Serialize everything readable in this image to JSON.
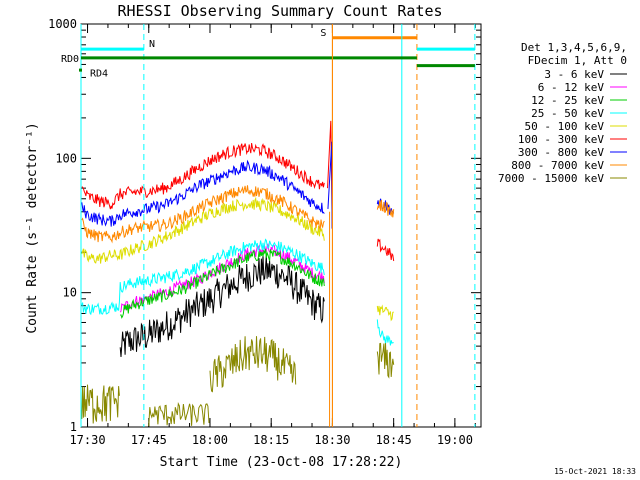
{
  "chart_data": {
    "type": "line",
    "title": "RHESSI Observing Summary Count Rates",
    "xlabel": "Start Time (23-Oct-08 17:28:22)",
    "ylabel": "Count Rate (s⁻¹ detector⁻¹)",
    "yscale": "log",
    "ylim": [
      1,
      1000
    ],
    "xlim_minutes": [
      0,
      98
    ],
    "x_unit": "minutes after 17:28:22",
    "x_ticks": [
      {
        "label": "17:30",
        "minute": 1.6
      },
      {
        "label": "17:45",
        "minute": 16.6
      },
      {
        "label": "18:00",
        "minute": 31.6
      },
      {
        "label": "18:15",
        "minute": 46.6
      },
      {
        "label": "18:30",
        "minute": 61.6
      },
      {
        "label": "18:45",
        "minute": 76.6
      },
      {
        "label": "19:00",
        "minute": 91.6
      }
    ],
    "y_ticks": [
      {
        "label": "1",
        "value": 1
      },
      {
        "label": "10",
        "value": 10
      },
      {
        "label": "100",
        "value": 100
      },
      {
        "label": "1000",
        "value": 1000
      }
    ],
    "legend_header": [
      "Det 1,3,4,5,6,9,",
      "FDecim 1, Att 0"
    ],
    "series": [
      {
        "name": "3 - 6 keV",
        "color": "#000000",
        "x": [
          9.6,
          10.6,
          11.6,
          12.6,
          13.6,
          14.6,
          16.6,
          18.6,
          20.6,
          22.6,
          24.6,
          26.6,
          28.6,
          30.6,
          32.6,
          34.6,
          36.6,
          38.6,
          40.6,
          42.6,
          44.6,
          46.6,
          48.6,
          50.6,
          52.6,
          54.6,
          56.6,
          57.6,
          58.6,
          59.6
        ],
        "y": [
          3.6,
          4.1,
          4.3,
          4.4,
          4.5,
          4.6,
          4.8,
          5.2,
          5.6,
          6.0,
          6.6,
          7.2,
          7.8,
          8.5,
          9.3,
          10.3,
          11.3,
          12.3,
          13.2,
          14.0,
          14.6,
          14.5,
          13.8,
          12.6,
          11.0,
          9.6,
          8.5,
          7.9,
          7.6,
          7.3
        ]
      },
      {
        "name": "6 - 12 keV",
        "color": "#ff00ff",
        "x": [
          9.6,
          12.6,
          16.6,
          20.6,
          24.6,
          28.6,
          32.6,
          36.6,
          40.6,
          44.6,
          48.6,
          52.6,
          56.6,
          59.6
        ],
        "y": [
          7.5,
          8.5,
          9.2,
          10.0,
          11.2,
          12.4,
          14.5,
          17.0,
          19.5,
          21.0,
          20.0,
          17.0,
          14.0,
          13.0
        ]
      },
      {
        "name": "12 - 25 keV",
        "color": "#00cc00",
        "x": [
          9.6,
          12.6,
          16.6,
          20.6,
          24.6,
          28.6,
          32.6,
          36.6,
          40.6,
          44.6,
          48.6,
          52.6,
          56.6,
          59.6
        ],
        "y": [
          7.0,
          8.0,
          8.8,
          9.5,
          10.5,
          12.0,
          14.0,
          16.0,
          18.0,
          19.5,
          18.5,
          16.0,
          13.0,
          12.0
        ]
      },
      {
        "name": "25 - 50 keV",
        "color": "#00ffff",
        "x": [
          0.2,
          1.6,
          4.6,
          7.6,
          9.4,
          9.6,
          12.6,
          16.6,
          20.6,
          24.6,
          28.6,
          32.6,
          36.6,
          40.6,
          44.6,
          48.6,
          52.6,
          56.6,
          59.6,
          72.6,
          73.6,
          74.6,
          75.6,
          76.6
        ],
        "y": [
          7.8,
          7.6,
          7.6,
          7.8,
          8.0,
          11.0,
          11.8,
          12.3,
          13.0,
          14.0,
          15.5,
          17.5,
          20.0,
          22.0,
          23.0,
          22.0,
          19.5,
          16.5,
          15.0,
          6.3,
          4.8,
          4.5,
          4.4,
          4.5
        ]
      },
      {
        "name": "50 - 100 keV",
        "color": "#dddd00",
        "x": [
          0.2,
          1.6,
          4.6,
          7.6,
          9.6,
          12.6,
          16.6,
          20.6,
          24.6,
          28.6,
          32.6,
          36.6,
          40.6,
          44.6,
          48.6,
          52.6,
          56.6,
          59.6,
          72.6,
          74.6,
          76.6
        ],
        "y": [
          20,
          18,
          18,
          19,
          19,
          21,
          23,
          26,
          30,
          35,
          40,
          44,
          46,
          45,
          41,
          36,
          30,
          27,
          7.6,
          7.2,
          6.8
        ]
      },
      {
        "name": "100 - 300 keV",
        "color": "#ff0000",
        "x": [
          0.2,
          1.6,
          4.6,
          7.6,
          9.6,
          12.6,
          16.6,
          20.6,
          24.6,
          28.6,
          32.6,
          36.6,
          40.6,
          44.6,
          48.6,
          52.6,
          56.6,
          59.6,
          72.6,
          74.6,
          76.6
        ],
        "y": [
          60,
          52,
          48,
          46,
          54,
          56,
          57,
          60,
          70,
          85,
          100,
          112,
          118,
          115,
          100,
          82,
          67,
          60,
          23,
          21,
          18
        ]
      },
      {
        "name": "300 - 800 keV",
        "color": "#0000ff",
        "x": [
          0.2,
          1.6,
          4.6,
          7.6,
          9.6,
          12.6,
          16.6,
          20.6,
          24.6,
          28.6,
          32.6,
          36.6,
          40.6,
          44.6,
          48.6,
          52.6,
          56.6,
          59.6,
          72.6,
          74.6,
          76.6
        ],
        "y": [
          43,
          38,
          35,
          34,
          38,
          40,
          42,
          45,
          52,
          62,
          70,
          80,
          86,
          83,
          72,
          58,
          47,
          42,
          48,
          45,
          40
        ]
      },
      {
        "name": "800 - 7000 keV",
        "color": "#ff8800",
        "x": [
          0.2,
          1.6,
          4.6,
          7.6,
          9.6,
          12.6,
          16.6,
          20.6,
          24.6,
          28.6,
          32.6,
          36.6,
          40.6,
          44.6,
          48.6,
          52.6,
          56.6,
          59.6,
          72.6,
          74.6,
          76.6
        ],
        "y": [
          33,
          28,
          26,
          26,
          28,
          30,
          31,
          32,
          36,
          42,
          48,
          54,
          58,
          56,
          49,
          41,
          34,
          31,
          46,
          43,
          38
        ]
      },
      {
        "name": "7000 - 15000 keV",
        "color": "#888800",
        "x": [
          31.6,
          34.6,
          36.6,
          38.6,
          40.6,
          42.6,
          44.6,
          46.6,
          48.6,
          50.6,
          52.6,
          72.6,
          74.6,
          76.6
        ],
        "y": [
          2.3,
          2.6,
          2.9,
          3.2,
          3.5,
          3.5,
          3.5,
          3.3,
          3.0,
          2.6,
          2.3,
          3.4,
          3.1,
          3.0
        ]
      }
    ],
    "spike": {
      "minute": 61.2,
      "peak": 190
    },
    "annotations": [
      {
        "label": "N",
        "color": "#00ffff",
        "x_start": 0.0,
        "x_end": 15.4,
        "level": 650,
        "bounds": [
          0.0,
          15.4
        ]
      },
      {
        "label": "S",
        "color": "#ff8800",
        "x_start": 61.6,
        "x_end": 82.3,
        "level": 790,
        "bounds": [
          61.6,
          82.3
        ]
      },
      {
        "label": "",
        "color": "#00ffff",
        "x_start": 82.3,
        "x_end": 96.5,
        "level": 650,
        "bounds": [
          78.6,
          96.5
        ]
      },
      {
        "label": "RD0",
        "color": "#008800",
        "x_start": 0.0,
        "x_end": 82.3,
        "level": 560,
        "bounds": []
      },
      {
        "label": "RD4",
        "color": "#008800",
        "x_start": 82.3,
        "x_end": 96.5,
        "level": 490,
        "bounds": []
      }
    ],
    "data_gaps": [
      [
        60.6,
        61.6
      ],
      [
        61.6,
        72.3
      ],
      [
        77.0,
        98.0
      ]
    ],
    "grid": false,
    "legend_position": "right"
  },
  "footer": {
    "timestamp": "15-Oct-2021 18:33"
  }
}
